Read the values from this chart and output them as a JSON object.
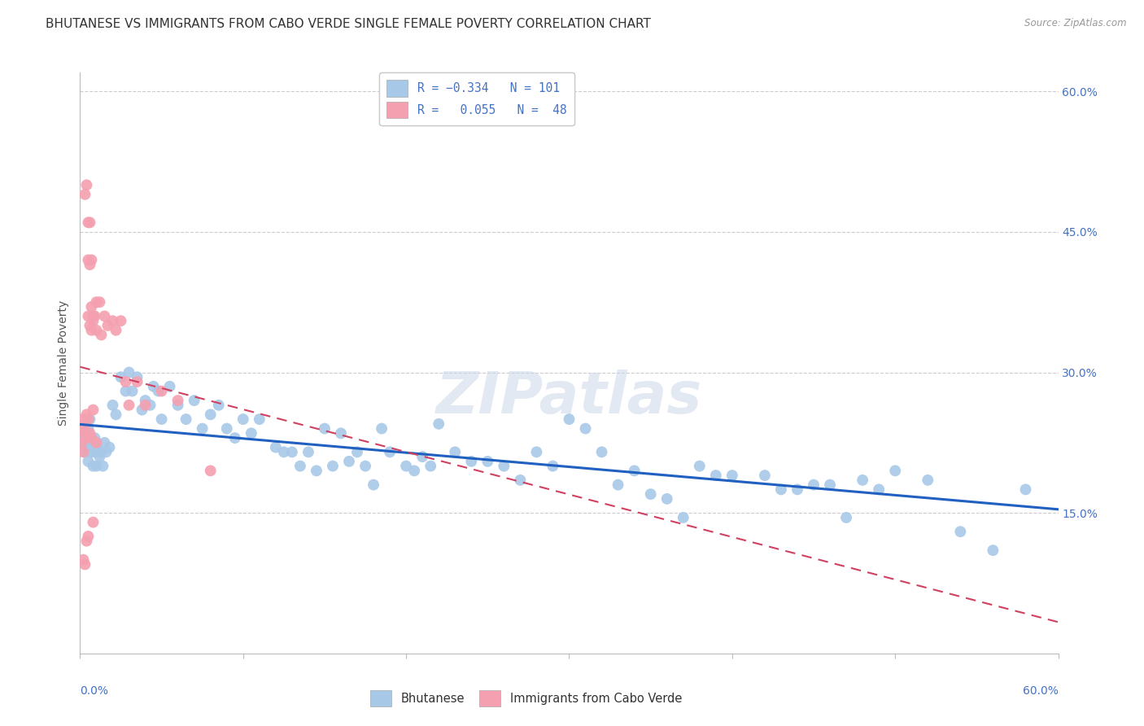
{
  "title": "BHUTANESE VS IMMIGRANTS FROM CABO VERDE SINGLE FEMALE POVERTY CORRELATION CHART",
  "source": "Source: ZipAtlas.com",
  "ylabel": "Single Female Poverty",
  "xlim": [
    0.0,
    0.6
  ],
  "ylim": [
    0.0,
    0.62
  ],
  "blue_color": "#a8c8e8",
  "pink_color": "#f4a0b0",
  "blue_line_color": "#2060c0",
  "pink_line_color": "#d04060",
  "watermark": "ZIPatlas",
  "bhutanese_x": [
    0.002,
    0.003,
    0.003,
    0.004,
    0.004,
    0.005,
    0.005,
    0.005,
    0.006,
    0.006,
    0.007,
    0.007,
    0.008,
    0.008,
    0.009,
    0.009,
    0.01,
    0.01,
    0.011,
    0.012,
    0.013,
    0.014,
    0.015,
    0.016,
    0.018,
    0.02,
    0.022,
    0.025,
    0.028,
    0.03,
    0.032,
    0.035,
    0.038,
    0.04,
    0.043,
    0.045,
    0.048,
    0.05,
    0.055,
    0.06,
    0.065,
    0.07,
    0.075,
    0.08,
    0.085,
    0.09,
    0.095,
    0.1,
    0.105,
    0.11,
    0.12,
    0.125,
    0.13,
    0.135,
    0.14,
    0.145,
    0.15,
    0.155,
    0.16,
    0.165,
    0.17,
    0.175,
    0.18,
    0.185,
    0.19,
    0.2,
    0.205,
    0.21,
    0.215,
    0.22,
    0.23,
    0.24,
    0.25,
    0.26,
    0.27,
    0.28,
    0.29,
    0.3,
    0.31,
    0.32,
    0.33,
    0.34,
    0.35,
    0.36,
    0.37,
    0.38,
    0.39,
    0.4,
    0.42,
    0.43,
    0.44,
    0.45,
    0.46,
    0.47,
    0.48,
    0.49,
    0.5,
    0.52,
    0.54,
    0.56,
    0.58
  ],
  "bhutanese_y": [
    0.23,
    0.215,
    0.225,
    0.22,
    0.24,
    0.205,
    0.22,
    0.24,
    0.25,
    0.23,
    0.215,
    0.225,
    0.2,
    0.22,
    0.215,
    0.23,
    0.2,
    0.22,
    0.215,
    0.21,
    0.215,
    0.2,
    0.225,
    0.215,
    0.22,
    0.265,
    0.255,
    0.295,
    0.28,
    0.3,
    0.28,
    0.295,
    0.26,
    0.27,
    0.265,
    0.285,
    0.28,
    0.25,
    0.285,
    0.265,
    0.25,
    0.27,
    0.24,
    0.255,
    0.265,
    0.24,
    0.23,
    0.25,
    0.235,
    0.25,
    0.22,
    0.215,
    0.215,
    0.2,
    0.215,
    0.195,
    0.24,
    0.2,
    0.235,
    0.205,
    0.215,
    0.2,
    0.18,
    0.24,
    0.215,
    0.2,
    0.195,
    0.21,
    0.2,
    0.245,
    0.215,
    0.205,
    0.205,
    0.2,
    0.185,
    0.215,
    0.2,
    0.25,
    0.24,
    0.215,
    0.18,
    0.195,
    0.17,
    0.165,
    0.145,
    0.2,
    0.19,
    0.19,
    0.19,
    0.175,
    0.175,
    0.18,
    0.18,
    0.145,
    0.185,
    0.175,
    0.195,
    0.185,
    0.13,
    0.11,
    0.175
  ],
  "caboverde_x": [
    0.001,
    0.001,
    0.002,
    0.002,
    0.002,
    0.003,
    0.003,
    0.003,
    0.003,
    0.004,
    0.004,
    0.004,
    0.004,
    0.005,
    0.005,
    0.005,
    0.005,
    0.005,
    0.006,
    0.006,
    0.006,
    0.006,
    0.007,
    0.007,
    0.007,
    0.007,
    0.008,
    0.008,
    0.008,
    0.008,
    0.009,
    0.01,
    0.01,
    0.01,
    0.012,
    0.013,
    0.015,
    0.017,
    0.02,
    0.022,
    0.025,
    0.028,
    0.03,
    0.035,
    0.04,
    0.05,
    0.06,
    0.08
  ],
  "caboverde_y": [
    0.24,
    0.225,
    0.25,
    0.215,
    0.1,
    0.49,
    0.245,
    0.235,
    0.095,
    0.5,
    0.255,
    0.23,
    0.12,
    0.46,
    0.42,
    0.36,
    0.25,
    0.125,
    0.46,
    0.415,
    0.35,
    0.235,
    0.42,
    0.37,
    0.345,
    0.23,
    0.36,
    0.355,
    0.26,
    0.14,
    0.36,
    0.375,
    0.345,
    0.225,
    0.375,
    0.34,
    0.36,
    0.35,
    0.355,
    0.345,
    0.355,
    0.29,
    0.265,
    0.29,
    0.265,
    0.28,
    0.27,
    0.195
  ],
  "background_color": "#ffffff",
  "grid_color": "#cccccc",
  "title_fontsize": 11,
  "axis_label_fontsize": 10,
  "tick_fontsize": 10
}
